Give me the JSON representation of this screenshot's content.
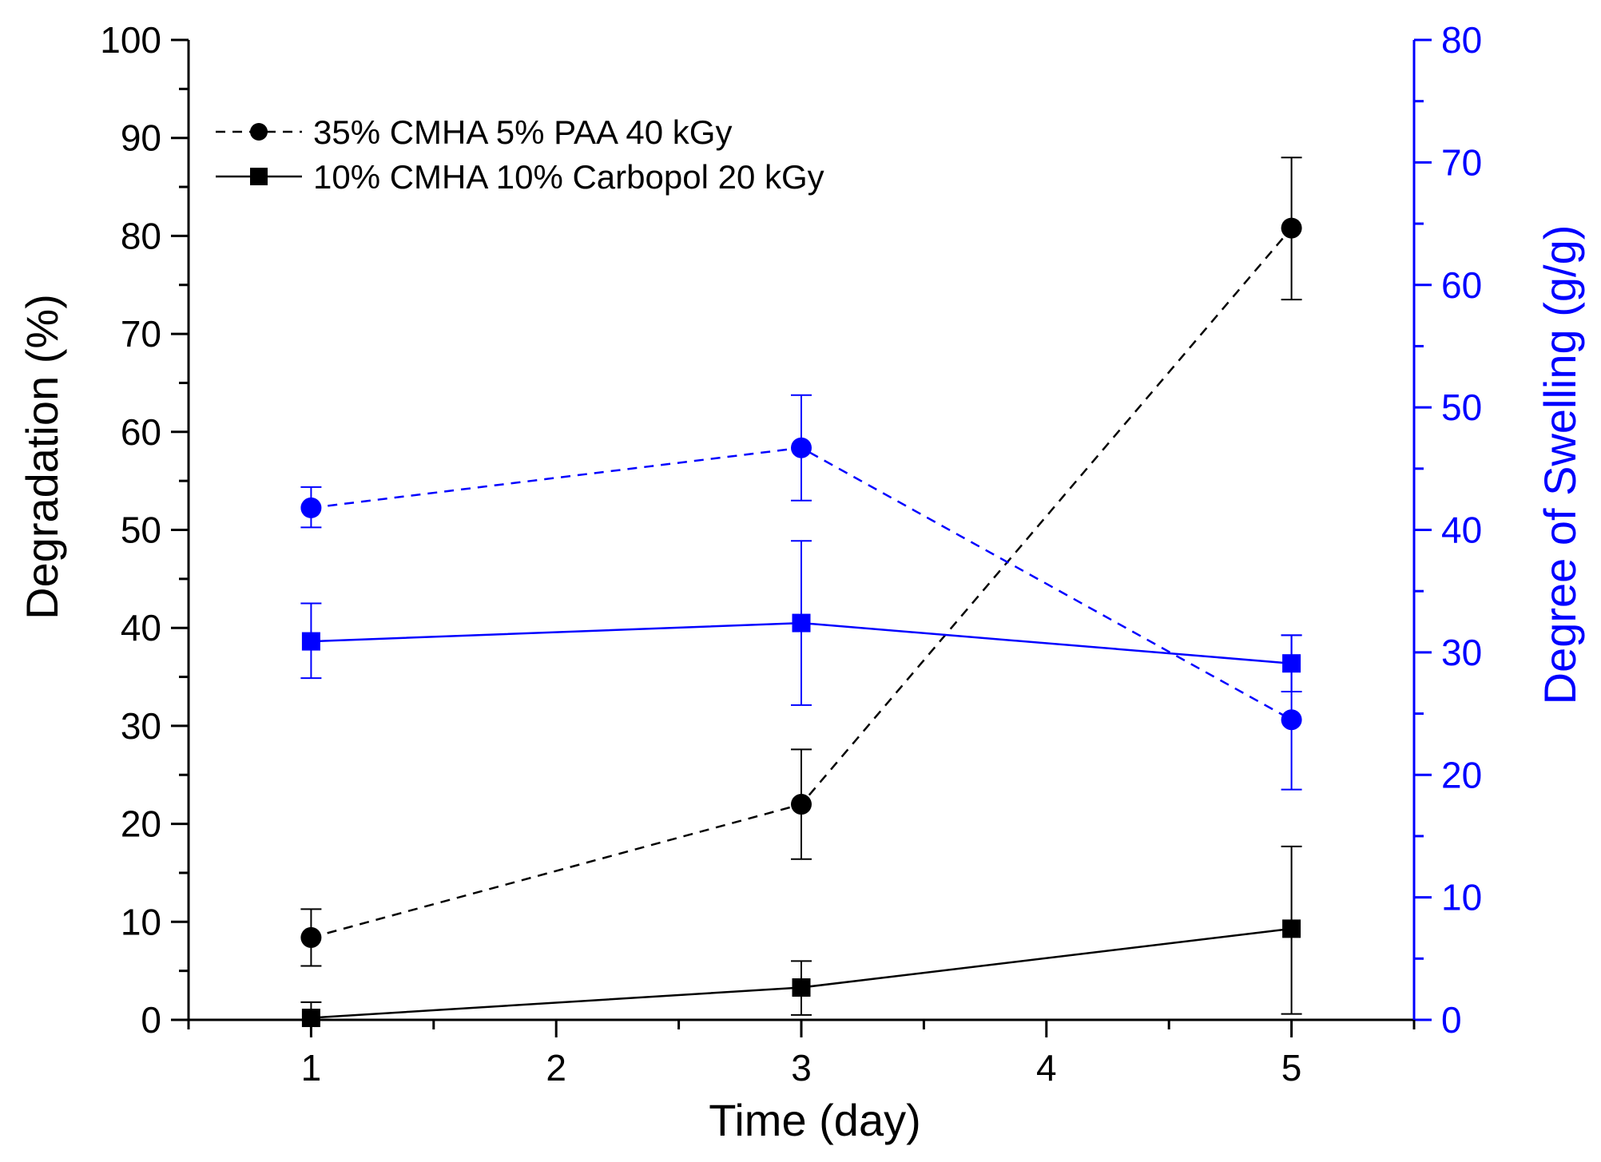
{
  "chart_data": {
    "type": "line",
    "x_axis": {
      "label": "Time (day)",
      "range": [
        0.5,
        5.5
      ],
      "ticks": [
        1,
        2,
        3,
        4,
        5
      ],
      "tick_labels": [
        "1",
        "2",
        "3",
        "4",
        "5"
      ],
      "minor_step": 0.5
    },
    "y_left": {
      "label": "Degradation (%)",
      "range": [
        0,
        100
      ],
      "ticks": [
        0,
        10,
        20,
        30,
        40,
        50,
        60,
        70,
        80,
        90,
        100
      ],
      "tick_labels": [
        "0",
        "10",
        "20",
        "30",
        "40",
        "50",
        "60",
        "70",
        "80",
        "90",
        "100"
      ],
      "minor_step": 5,
      "color": "#000000"
    },
    "y_right": {
      "label": "Degree of Swelling (g/g)",
      "range": [
        0,
        80
      ],
      "ticks": [
        0,
        10,
        20,
        30,
        40,
        50,
        60,
        70,
        80
      ],
      "tick_labels": [
        "0",
        "10",
        "20",
        "30",
        "40",
        "50",
        "60",
        "70",
        "80"
      ],
      "minor_step": 5,
      "color": "#0000ff"
    },
    "legend": {
      "position": "top-left",
      "entries": [
        {
          "label": "35% CMHA 5% PAA 40 kGy",
          "marker": "circle",
          "dash": "dashed"
        },
        {
          "label": "10% CMHA 10% Carbopol 20 kGy",
          "marker": "square",
          "dash": "solid"
        }
      ]
    },
    "series": [
      {
        "name": "35% CMHA 5% PAA 40 kGy - Degradation",
        "axis": "left",
        "color": "#000000",
        "marker": "circle",
        "dash": "dashed",
        "x": [
          1,
          3,
          5
        ],
        "y": [
          8.4,
          22.0,
          80.8
        ],
        "err_low": [
          5.5,
          16.4,
          73.5
        ],
        "err_high": [
          11.3,
          27.6,
          88.0
        ]
      },
      {
        "name": "10% CMHA 10% Carbopol 20 kGy - Degradation",
        "axis": "left",
        "color": "#000000",
        "marker": "square",
        "dash": "solid",
        "x": [
          1,
          3,
          5
        ],
        "y": [
          0.2,
          3.3,
          9.3
        ],
        "err_low": [
          0,
          0.5,
          0.6
        ],
        "err_high": [
          1.8,
          6.0,
          17.7
        ]
      },
      {
        "name": "35% CMHA 5% PAA 40 kGy - Swelling",
        "axis": "right",
        "color": "#0000ff",
        "marker": "circle",
        "dash": "dashed",
        "x": [
          1,
          3,
          5
        ],
        "y": [
          41.8,
          46.7,
          24.5
        ],
        "err_low": [
          40.2,
          42.4,
          18.8
        ],
        "err_high": [
          43.5,
          51.0,
          31.4
        ]
      },
      {
        "name": "10% CMHA 10% Carbopol 20 kGy - Swelling",
        "axis": "right",
        "color": "#0000ff",
        "marker": "square",
        "dash": "solid",
        "x": [
          1,
          3,
          5
        ],
        "y": [
          30.9,
          32.4,
          29.1
        ],
        "err_low": [
          27.9,
          25.7,
          26.8
        ],
        "err_high": [
          34.0,
          39.1,
          31.4
        ]
      }
    ]
  }
}
